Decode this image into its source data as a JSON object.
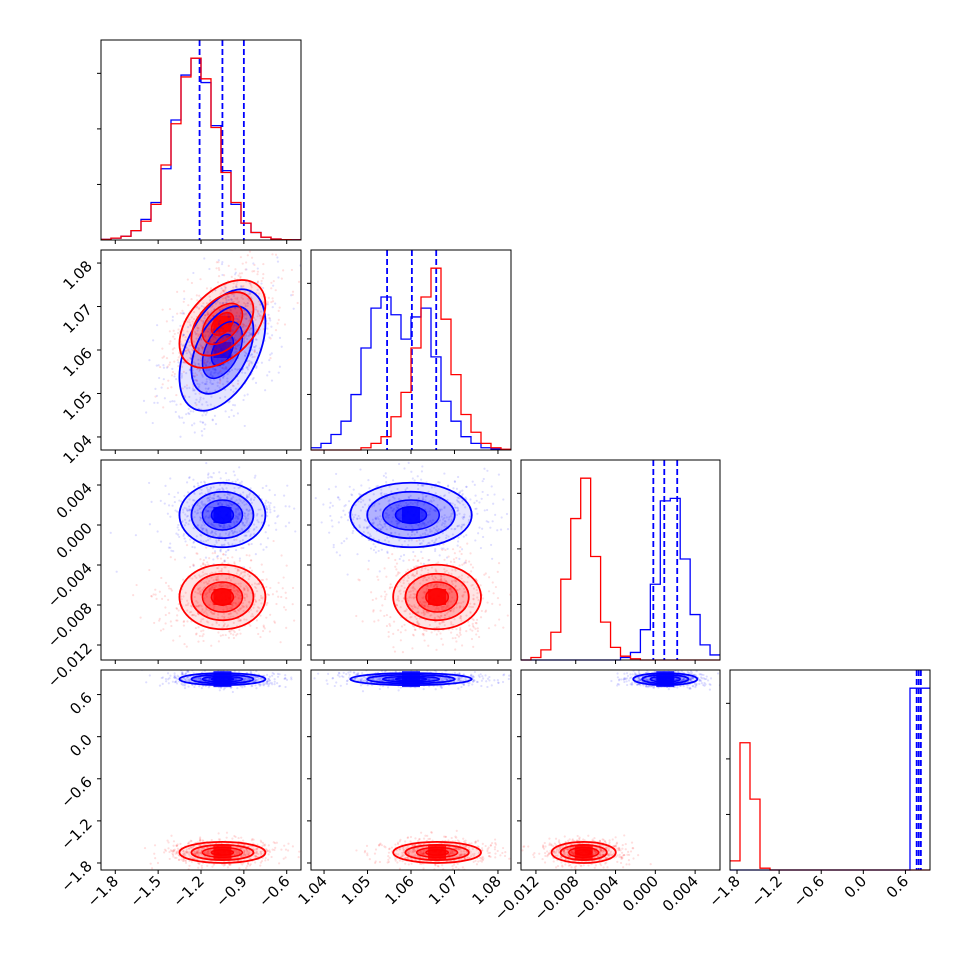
{
  "chart_data": {
    "type": "corner",
    "title": "",
    "xlabel": "",
    "ylabel": "",
    "grid": true,
    "legend": "none",
    "parameters": [
      {
        "range": [
          -1.9,
          -0.5
        ],
        "ticks": [
          -1.8,
          -1.5,
          -1.2,
          -0.9,
          -0.6
        ],
        "tick_labels": [
          "−1.8",
          "−1.5",
          "−1.2",
          "−0.9",
          "−0.6"
        ]
      },
      {
        "range": [
          1.037,
          1.083
        ],
        "ticks": [
          1.04,
          1.05,
          1.06,
          1.07,
          1.08
        ],
        "tick_labels": [
          "1.04",
          "1.05",
          "1.06",
          "1.07",
          "1.08"
        ]
      },
      {
        "range": [
          -0.0135,
          0.0065
        ],
        "ticks": [
          -0.012,
          -0.008,
          -0.004,
          0.0,
          0.004
        ],
        "tick_labels": [
          "−0.012",
          "−0.008",
          "−0.004",
          "0.000",
          "0.004"
        ]
      },
      {
        "range": [
          -1.9,
          0.95
        ],
        "ticks": [
          -1.8,
          -1.2,
          -0.6,
          0.0,
          0.6
        ],
        "tick_labels": [
          "−1.8",
          "−1.2",
          "−0.6",
          "0.0",
          "0.6"
        ]
      }
    ],
    "series": [
      {
        "color": "#0000ff",
        "mean": [
          -1.05,
          1.06,
          0.001,
          0.82
        ],
        "std": [
          0.14,
          0.0065,
          0.0015,
          0.04
        ],
        "quantile_lines": [
          [
            -1.21,
            -1.05,
            -0.9
          ],
          [
            1.0545,
            1.0602,
            1.0658
          ],
          [
            -0.0002,
            0.0009,
            0.0022
          ],
          [
            0.76,
            0.79,
            0.82
          ]
        ],
        "histograms": [
          {
            "edges_range": [
              -1.9,
              -0.5
            ],
            "counts": [
              0.3,
              1,
              2,
              5,
              11,
              20,
              38,
              64,
              88,
              97,
              84,
              61,
              37,
              19,
              9,
              4,
              1.5,
              0.5,
              0.2,
              0.1
            ]
          },
          {
            "edges_range": [
              1.037,
              1.083
            ],
            "counts": [
              1,
              3,
              7,
              13,
              25,
              46,
              64,
              69,
              61,
              50,
              60,
              64,
              42,
              22,
              13,
              6,
              3,
              1,
              0.5,
              0.2
            ]
          },
          {
            "edges_range": [
              -0.0135,
              0.0065
            ],
            "counts": [
              0,
              0,
              0,
              0,
              0,
              0,
              0,
              0,
              0,
              0,
              1,
              3,
              12,
              30,
              63,
              64,
              40,
              18,
              6,
              2
            ]
          },
          {
            "edges_range": [
              -1.9,
              0.95
            ],
            "counts": [
              0,
              0,
              0,
              0,
              0,
              0,
              0,
              0,
              0,
              0,
              0,
              0,
              0,
              0,
              0,
              0,
              0,
              0,
              100,
              100
            ]
          }
        ]
      },
      {
        "color": "#ff0000",
        "mean": [
          -1.05,
          1.066,
          -0.0072,
          -1.65
        ],
        "std": [
          0.14,
          0.0047,
          0.0015,
          0.07
        ],
        "quantile_lines": [],
        "histograms": [
          {
            "edges_range": [
              -1.9,
              -0.5
            ],
            "counts": [
              0.3,
              1,
              2,
              5,
              10,
              19,
              40,
              62,
              87,
              97,
              86,
              60,
              36,
              20,
              9,
              4,
              1.5,
              0.5,
              0.2,
              0.1
            ]
          },
          {
            "edges_range": [
              1.037,
              1.083
            ],
            "counts": [
              0,
              0,
              0,
              0,
              0,
              1,
              3,
              6,
              15,
              26,
              46,
              69,
              82,
              59,
              34,
              16,
              8,
              3,
              1,
              0.3
            ]
          },
          {
            "edges_range": [
              -0.0135,
              0.0065
            ],
            "counts": [
              0,
              1,
              4,
              11,
              32,
              56,
              72,
              41,
              15,
              5,
              1.5,
              0.5,
              0,
              0,
              0,
              0,
              0,
              0,
              0,
              0
            ]
          },
          {
            "edges_range": [
              -1.9,
              0.95
            ],
            "counts": [
              5,
              70,
              39,
              1,
              0,
              0,
              0,
              0,
              0,
              0,
              0,
              0,
              0,
              0,
              0,
              0,
              0,
              0,
              0,
              0
            ]
          }
        ]
      }
    ]
  }
}
